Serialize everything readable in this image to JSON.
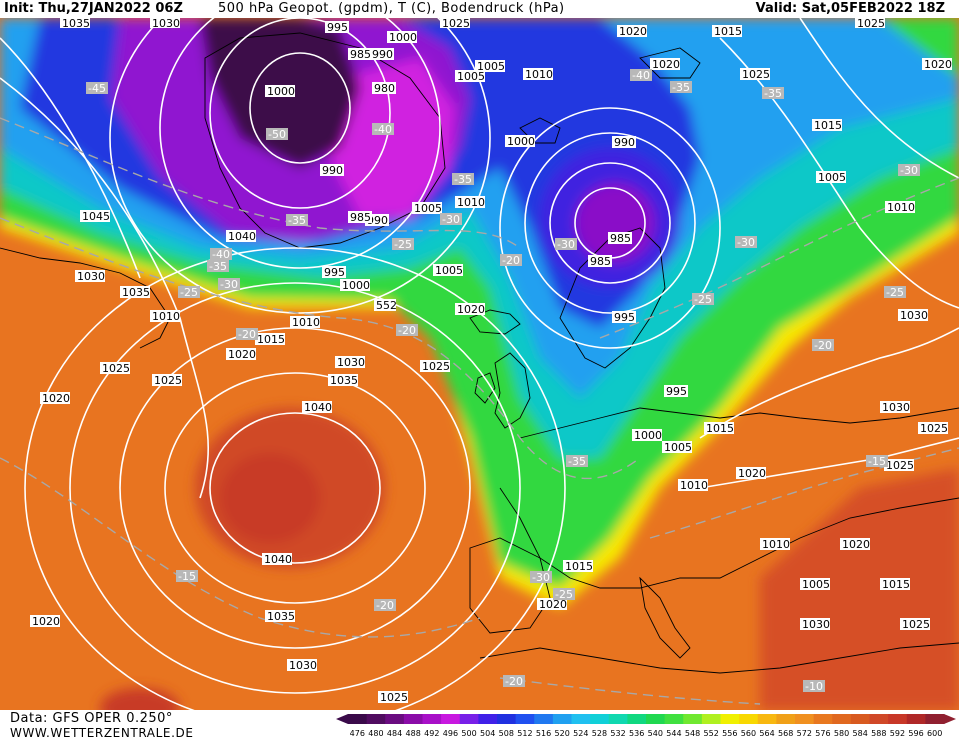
{
  "header": {
    "init": "Init: Thu,27JAN2022 06Z",
    "title": "500 hPa Geopot. (gpdm), T (C), Bodendruck (hPa)",
    "valid": "Valid: Sat,05FEB2022 18Z"
  },
  "footer": {
    "data_source": "Data: GFS OPER 0.250°",
    "website": "WWW.WETTERZENTRALE.DE"
  },
  "colors": {
    "deep_low": "#3d0a4a",
    "purple": "#8a10c8",
    "magenta": "#d020e0",
    "blue": "#2030e0",
    "light_blue": "#20a0f0",
    "cyan": "#10d0d0",
    "green": "#20d040",
    "yellow": "#f8f000",
    "orange": "#f09020",
    "dark_orange": "#e06020",
    "red": "#d03828",
    "isobar": "#ffffff",
    "isotherm": "#a0a0a0"
  },
  "scale": {
    "values": [
      "476",
      "480",
      "484",
      "488",
      "492",
      "496",
      "500",
      "504",
      "508",
      "512",
      "516",
      "520",
      "524",
      "528",
      "532",
      "536",
      "540",
      "544",
      "548",
      "552",
      "556",
      "560",
      "564",
      "568",
      "572",
      "576",
      "580",
      "584",
      "588",
      "592",
      "596",
      "600"
    ],
    "colors": [
      "#3a0a4a",
      "#500c60",
      "#6a0c80",
      "#8a0ca8",
      "#a810c8",
      "#c818e0",
      "#7820e8",
      "#4020e8",
      "#2030e0",
      "#2050f0",
      "#2078f0",
      "#20a0f0",
      "#20c0f0",
      "#10d0d8",
      "#10d8b0",
      "#10d880",
      "#20d850",
      "#40e040",
      "#70e830",
      "#b0f020",
      "#f0f000",
      "#f8d800",
      "#f8b810",
      "#f0a018",
      "#f09020",
      "#e87820",
      "#e06820",
      "#d85a20",
      "#d04828",
      "#c83828",
      "#b02828",
      "#902030"
    ]
  },
  "isobar_labels": [
    "995",
    "1000",
    "985",
    "990",
    "1005",
    "1000",
    "1005",
    "1010",
    "1000",
    "1020",
    "1015",
    "990",
    "980",
    "1010",
    "1005",
    "990",
    "1045",
    "985",
    "990",
    "1005",
    "1030",
    "1020",
    "1040",
    "1035",
    "1030",
    "1025",
    "1010",
    "1000",
    "995",
    "1015",
    "1025",
    "1010",
    "1020",
    "1035",
    "1040",
    "1035",
    "1030",
    "1025",
    "1020",
    "1025",
    "1020",
    "1015",
    "1020",
    "1005",
    "1010",
    "1030",
    "1025",
    "1025",
    "1020",
    "985",
    "995",
    "995",
    "1000",
    "1005",
    "1010",
    "1015",
    "1030",
    "1025",
    "1020",
    "1025",
    "985",
    "1040",
    "1015",
    "1025",
    "1030",
    "1035",
    "1025",
    "1020",
    "1015",
    "1020",
    "1010",
    "1005",
    "1030"
  ],
  "temp_labels": [
    "-45",
    "-50",
    "-40",
    "-35",
    "-35",
    "-40",
    "-35",
    "-30",
    "-35",
    "-40",
    "-35",
    "-30",
    "-25",
    "-30",
    "-20",
    "-25",
    "-20",
    "-20",
    "-35",
    "-30",
    "-25",
    "-30",
    "-25",
    "-20",
    "-15",
    "-20",
    "-15",
    "-30",
    "-25",
    "-10",
    "-20"
  ],
  "height_label": "552"
}
